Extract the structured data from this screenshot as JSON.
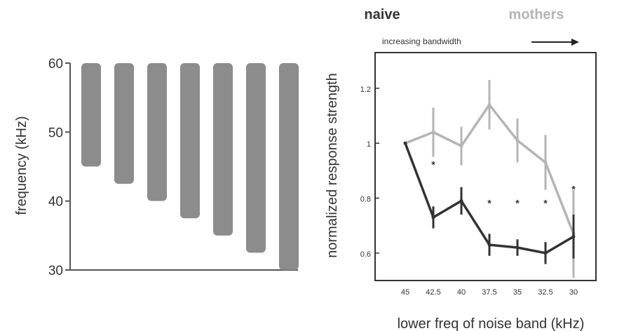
{
  "colors": {
    "bar": "#8c8c8c",
    "axis": "#555555",
    "naive": "#333333",
    "mothers": "#b5b5b5"
  },
  "chart_data": [
    {
      "type": "bar",
      "subtype": "floating-range",
      "ylabel": "frequency (kHz)",
      "ylim": [
        30,
        60
      ],
      "yticks": [
        "30",
        "40",
        "50",
        "60"
      ],
      "bars": [
        {
          "low": 45,
          "high": 60
        },
        {
          "low": 42.5,
          "high": 60
        },
        {
          "low": 40,
          "high": 60
        },
        {
          "low": 37.5,
          "high": 60
        },
        {
          "low": 35,
          "high": 60
        },
        {
          "low": 32.5,
          "high": 60
        },
        {
          "low": 30,
          "high": 60
        }
      ]
    },
    {
      "type": "line",
      "xlabel": "lower freq of noise band (kHz)",
      "ylabel": "normalized response strength",
      "annotation": "increasing bandwidth",
      "categories": [
        "45",
        "42.5",
        "40",
        "37.5",
        "35",
        "32.5",
        "30"
      ],
      "ylim": [
        0.5,
        1.33
      ],
      "yticks": [
        "0.6",
        "0.8",
        "1",
        "1.2"
      ],
      "legend_position": "top",
      "series": [
        {
          "name": "naive",
          "values": [
            1.0,
            0.73,
            0.79,
            0.63,
            0.62,
            0.6,
            0.66
          ],
          "err": [
            0,
            0.04,
            0.05,
            0.04,
            0.03,
            0.04,
            0.08
          ]
        },
        {
          "name": "mothers",
          "values": [
            1.0,
            1.04,
            0.99,
            1.14,
            1.01,
            0.93,
            0.67
          ],
          "err": [
            0,
            0.09,
            0.07,
            0.09,
            0.08,
            0.1,
            0.16
          ]
        }
      ],
      "significance": [
        {
          "category": "42.5",
          "mark": "*"
        },
        {
          "category": "37.5",
          "mark": "*"
        },
        {
          "category": "35",
          "mark": "*"
        },
        {
          "category": "32.5",
          "mark": "*"
        },
        {
          "category": "30",
          "mark": "*"
        }
      ]
    }
  ]
}
